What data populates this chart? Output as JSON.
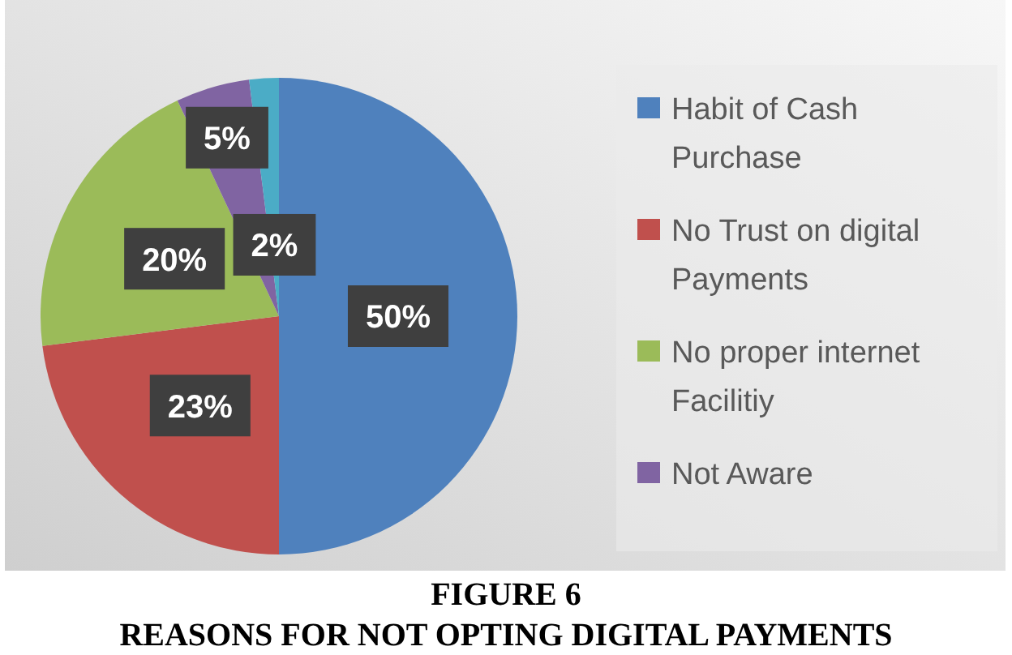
{
  "chart_data": {
    "type": "pie",
    "title": "FIGURE 6",
    "subtitle": "REASONS FOR NOT OPTING DIGITAL PAYMENTS",
    "categories": [
      "Habit of Cash Purchase",
      "No Trust on digital Payments",
      "No proper internet Facilitiy",
      "Not Aware",
      null
    ],
    "values": [
      50,
      23,
      20,
      5,
      2
    ],
    "colors": [
      "#4f81bd",
      "#c0504d",
      "#9bbb59",
      "#8064a2",
      "#4bacc6"
    ],
    "value_labels": [
      "50%",
      "23%",
      "20%",
      "5%",
      "2%"
    ],
    "legend": "right"
  }
}
